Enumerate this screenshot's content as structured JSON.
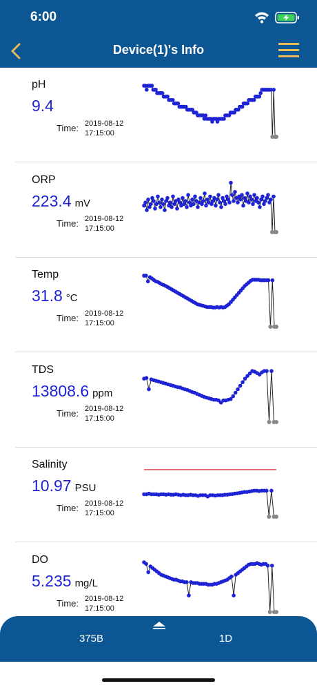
{
  "status_bar": {
    "time": "6:00",
    "icons": [
      "wifi-icon",
      "battery-charging-icon"
    ]
  },
  "nav": {
    "title": "Device(1)'s Info",
    "back_icon": "chevron-left-icon",
    "menu_icon": "hamburger-menu-icon"
  },
  "colors": {
    "accent": "#0c5793",
    "value": "#1e23d4",
    "menu_icon": "#e8b95a",
    "point": "#1e23d4",
    "missing_point": "#888888",
    "threshold_line": "#e0283b"
  },
  "readings": [
    {
      "key": "ph",
      "label": "pH",
      "value": "9.4",
      "unit": "",
      "time_label": "Time:",
      "date": "2019-08-12",
      "time": "17:15:00",
      "chart_data": {
        "type": "line",
        "y": [
          9.45,
          9.45,
          9.38,
          9.45,
          9.45,
          9.45,
          9.45,
          9.38,
          9.38,
          9.38,
          9.32,
          9.32,
          9.32,
          9.32,
          9.32,
          9.26,
          9.26,
          9.26,
          9.26,
          9.2,
          9.2,
          9.2,
          9.2,
          9.14,
          9.14,
          9.14,
          9.14,
          9.08,
          9.08,
          9.08,
          9.08,
          9.08,
          9.08,
          9.03,
          9.03,
          9.03,
          9.03,
          9.03,
          8.98,
          8.98,
          8.98,
          8.93,
          8.93,
          8.93,
          8.93,
          8.93,
          8.87,
          8.93,
          8.87,
          8.87,
          8.87,
          8.87,
          8.82,
          8.87,
          8.87,
          8.87,
          8.82,
          8.87,
          8.87,
          8.87,
          8.87,
          8.87,
          8.93,
          8.93,
          8.93,
          8.93,
          8.98,
          8.98,
          8.98,
          8.98,
          9.03,
          9.03,
          9.03,
          9.08,
          9.08,
          9.08,
          9.14,
          9.14,
          9.14,
          9.14,
          9.2,
          9.2,
          9.2,
          9.2,
          9.2,
          9.26,
          9.26,
          9.26,
          9.26,
          9.32,
          9.38,
          9.38,
          9.38,
          9.38,
          9.38,
          9.38,
          9.38,
          9.38,
          null,
          9.38,
          null,
          null
        ],
        "ylim": [
          8.7,
          9.5
        ]
      }
    },
    {
      "key": "orp",
      "label": "ORP",
      "value": "223.4",
      "unit": "mV",
      "time_label": "Time:",
      "date": "2019-08-12",
      "time": "17:15:00",
      "chart_data": {
        "type": "line",
        "y": [
          222,
          224,
          219,
          226,
          221,
          223,
          227,
          225,
          220,
          223,
          228,
          224,
          221,
          226,
          223,
          219,
          225,
          227,
          222,
          224,
          221,
          228,
          223,
          225,
          220,
          226,
          224,
          222,
          227,
          223,
          225,
          221,
          229,
          224,
          222,
          226,
          223,
          228,
          225,
          221,
          224,
          227,
          223,
          225,
          230,
          222,
          226,
          224,
          228,
          223,
          225,
          227,
          222,
          226,
          229,
          224,
          221,
          227,
          225,
          223,
          228,
          226,
          224,
          237,
          229,
          225,
          231,
          227,
          224,
          228,
          226,
          229,
          222,
          227,
          225,
          230,
          224,
          228,
          226,
          223,
          229,
          225,
          227,
          224,
          221,
          226,
          228,
          223,
          225,
          227,
          229,
          224,
          226,
          null,
          228,
          null,
          null
        ],
        "ylim": [
          210,
          240
        ]
      }
    },
    {
      "key": "temp",
      "label": "Temp",
      "value": "31.8",
      "unit": "°C",
      "time_label": "Time:",
      "date": "2019-08-12",
      "time": "17:15:00",
      "chart_data": {
        "type": "line",
        "y": [
          32.0,
          32.0,
          31.8,
          31.95,
          31.9,
          31.85,
          31.8,
          31.78,
          31.74,
          31.7,
          31.67,
          31.64,
          31.6,
          31.56,
          31.52,
          31.48,
          31.44,
          31.4,
          31.36,
          31.32,
          31.28,
          31.24,
          31.2,
          31.16,
          31.12,
          31.08,
          31.04,
          31.0,
          30.98,
          30.96,
          30.94,
          30.92,
          30.9,
          30.9,
          30.9,
          30.88,
          30.88,
          30.9,
          30.88,
          30.9,
          30.88,
          30.9,
          30.95,
          31.0,
          31.08,
          31.16,
          31.24,
          31.32,
          31.4,
          31.48,
          31.56,
          31.64,
          31.7,
          31.76,
          31.82,
          31.86,
          31.86,
          31.86,
          31.86,
          31.84,
          31.84,
          31.84,
          31.84,
          31.84,
          null,
          31.84,
          null,
          null
        ],
        "ylim": [
          30.5,
          32.1
        ]
      }
    },
    {
      "key": "tds",
      "label": "TDS",
      "value": "13808.6",
      "unit": "ppm",
      "time_label": "Time:",
      "date": "2019-08-12",
      "time": "17:15:00",
      "chart_data": {
        "type": "line",
        "y": [
          13840,
          13842,
          13810,
          13838,
          13836,
          13834,
          13832,
          13830,
          13828,
          13826,
          13824,
          13822,
          13820,
          13818,
          13816,
          13815,
          13812,
          13810,
          13808,
          13805,
          13802,
          13800,
          13797,
          13794,
          13791,
          13788,
          13786,
          13784,
          13782,
          13780,
          13780,
          13778,
          13772,
          13778,
          13778,
          13780,
          13782,
          13790,
          13800,
          13810,
          13820,
          13830,
          13840,
          13848,
          13855,
          13862,
          13860,
          13856,
          13852,
          13858,
          13862,
          13862,
          null,
          13862,
          null,
          null
        ],
        "ylim": [
          13740,
          13870
        ]
      }
    },
    {
      "key": "salinity",
      "label": "Salinity",
      "value": "10.97",
      "unit": "PSU",
      "time_label": "Time:",
      "date": "2019-08-12",
      "time": "17:15:00",
      "chart_data": {
        "type": "line",
        "y": [
          10.962,
          10.962,
          10.965,
          10.962,
          10.962,
          10.962,
          10.96,
          10.962,
          10.962,
          10.96,
          10.962,
          10.96,
          10.96,
          10.962,
          10.96,
          10.958,
          10.96,
          10.958,
          10.958,
          10.96,
          10.958,
          10.958,
          10.955,
          10.958,
          10.958,
          10.958,
          10.952,
          10.958,
          10.958,
          10.956,
          10.958,
          10.958,
          10.958,
          10.96,
          10.96,
          10.962,
          10.963,
          10.965,
          10.966,
          10.968,
          10.97,
          10.972,
          10.972,
          10.974,
          10.976,
          10.978,
          10.978,
          10.976,
          10.978,
          10.978,
          10.978,
          null,
          10.978,
          null,
          null
        ],
        "threshold": 11.07,
        "ylim": [
          10.9,
          11.1
        ]
      }
    },
    {
      "key": "do",
      "label": "DO",
      "value": "5.235",
      "unit": "mg/L",
      "time_label": "Time:",
      "date": "2019-08-12",
      "time": "17:15:00",
      "chart_data": {
        "type": "line",
        "y": [
          5.4,
          5.38,
          5.28,
          5.35,
          5.33,
          5.31,
          5.29,
          5.27,
          5.25,
          5.24,
          5.23,
          5.22,
          5.21,
          5.2,
          5.19,
          5.19,
          5.18,
          5.17,
          5.17,
          5.16,
          5.16,
          5.0,
          5.16,
          5.15,
          5.15,
          5.15,
          5.14,
          5.14,
          5.14,
          5.14,
          5.13,
          5.13,
          5.13,
          5.14,
          5.14,
          5.15,
          5.16,
          5.17,
          5.18,
          5.19,
          5.21,
          5.23,
          5.0,
          5.25,
          5.27,
          5.29,
          5.31,
          5.33,
          5.35,
          5.37,
          5.38,
          5.38,
          5.38,
          5.39,
          5.38,
          5.37,
          5.38,
          5.38,
          5.36,
          null,
          5.36,
          null,
          null
        ],
        "ylim": [
          4.9,
          5.45
        ]
      }
    }
  ],
  "bottom_bar": {
    "left_label": "375B",
    "right_label": "1D",
    "expand_icon": "triangle-up-icon"
  }
}
